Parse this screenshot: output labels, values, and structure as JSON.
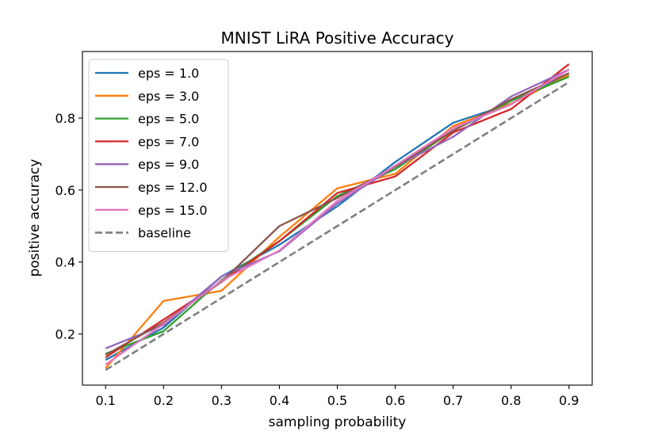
{
  "chart_data": {
    "type": "line",
    "title": "MNIST LiRA Positive Accuracy",
    "xlabel": "sampling probability",
    "ylabel": "positive accuracy",
    "x": [
      0.1,
      0.2,
      0.3,
      0.4,
      0.5,
      0.6,
      0.7,
      0.8,
      0.9
    ],
    "xlim": [
      0.06,
      0.94
    ],
    "ylim": [
      0.058,
      0.985
    ],
    "xticks": [
      0.1,
      0.2,
      0.3,
      0.4,
      0.5,
      0.6,
      0.7,
      0.8,
      0.9
    ],
    "xtick_labels": [
      "0.1",
      "0.2",
      "0.3",
      "0.4",
      "0.5",
      "0.6",
      "0.7",
      "0.8",
      "0.9"
    ],
    "yticks": [
      0.2,
      0.4,
      0.6,
      0.8
    ],
    "ytick_labels": [
      "0.2",
      "0.4",
      "0.6",
      "0.8"
    ],
    "grid": false,
    "legend_position": "top-left",
    "series": [
      {
        "name": "eps = 1.0",
        "color": "#1f77b4",
        "dashed": false,
        "values": [
          0.128,
          0.218,
          0.36,
          0.448,
          0.555,
          0.678,
          0.787,
          0.84,
          0.925
        ]
      },
      {
        "name": "eps = 3.0",
        "color": "#ff7f0e",
        "dashed": false,
        "values": [
          0.105,
          0.292,
          0.32,
          0.47,
          0.605,
          0.645,
          0.778,
          0.84,
          0.92
        ]
      },
      {
        "name": "eps = 5.0",
        "color": "#2ca02c",
        "dashed": false,
        "values": [
          0.145,
          0.208,
          0.35,
          0.458,
          0.583,
          0.658,
          0.765,
          0.848,
          0.915
        ]
      },
      {
        "name": "eps = 7.0",
        "color": "#d62728",
        "dashed": false,
        "values": [
          0.135,
          0.24,
          0.345,
          0.458,
          0.592,
          0.638,
          0.76,
          0.825,
          0.95
        ]
      },
      {
        "name": "eps = 9.0",
        "color": "#9467bd",
        "dashed": false,
        "values": [
          0.16,
          0.225,
          0.36,
          0.43,
          0.563,
          0.665,
          0.748,
          0.86,
          0.935
        ]
      },
      {
        "name": "eps = 12.0",
        "color": "#8c564b",
        "dashed": false,
        "values": [
          0.142,
          0.232,
          0.345,
          0.5,
          0.578,
          0.665,
          0.765,
          0.852,
          0.925
        ]
      },
      {
        "name": "eps = 15.0",
        "color": "#e377c2",
        "dashed": false,
        "values": [
          0.115,
          0.228,
          0.348,
          0.432,
          0.57,
          0.668,
          0.772,
          0.838,
          0.935
        ]
      },
      {
        "name": "baseline",
        "color": "#7f7f7f",
        "dashed": true,
        "values": [
          0.1,
          0.2,
          0.3,
          0.4,
          0.5,
          0.6,
          0.7,
          0.8,
          0.9
        ]
      }
    ]
  }
}
